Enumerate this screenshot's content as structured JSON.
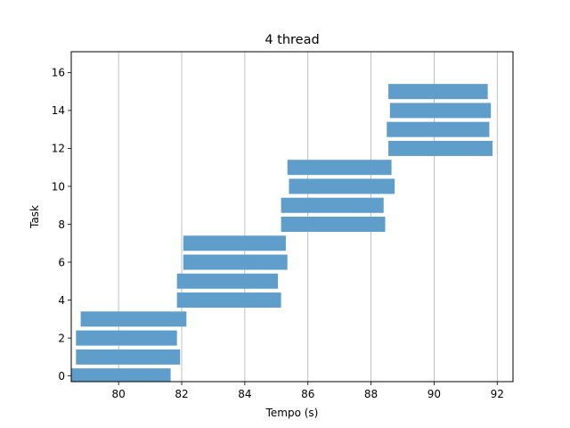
{
  "chart_data": {
    "type": "bar",
    "orientation": "horizontal",
    "title": "4 thread",
    "xlabel": "Tempo (s)",
    "ylabel": "Task",
    "xlim": [
      78.5,
      92.5
    ],
    "ylim": [
      -0.3,
      17.1
    ],
    "x_ticks": [
      80,
      82,
      84,
      86,
      88,
      90,
      92
    ],
    "y_ticks": [
      0,
      2,
      4,
      6,
      8,
      10,
      12,
      14,
      16
    ],
    "grid": "x",
    "bar_color": "#5f9ecb",
    "bars": [
      {
        "task": 1,
        "start": 78.45,
        "end": 81.65
      },
      {
        "task": 2,
        "start": 78.65,
        "end": 81.95
      },
      {
        "task": 3,
        "start": 78.65,
        "end": 81.85
      },
      {
        "task": 4,
        "start": 78.8,
        "end": 82.15
      },
      {
        "task": 5,
        "start": 81.85,
        "end": 85.15
      },
      {
        "task": 6,
        "start": 81.85,
        "end": 85.05
      },
      {
        "task": 7,
        "start": 82.05,
        "end": 85.35
      },
      {
        "task": 8,
        "start": 82.05,
        "end": 85.3
      },
      {
        "task": 9,
        "start": 85.15,
        "end": 88.45
      },
      {
        "task": 10,
        "start": 85.15,
        "end": 88.4
      },
      {
        "task": 11,
        "start": 85.4,
        "end": 88.75
      },
      {
        "task": 12,
        "start": 85.35,
        "end": 88.65
      },
      {
        "task": 13,
        "start": 88.55,
        "end": 91.85
      },
      {
        "task": 14,
        "start": 88.5,
        "end": 91.75
      },
      {
        "task": 15,
        "start": 88.6,
        "end": 91.8
      },
      {
        "task": 16,
        "start": 88.55,
        "end": 91.7
      }
    ]
  }
}
